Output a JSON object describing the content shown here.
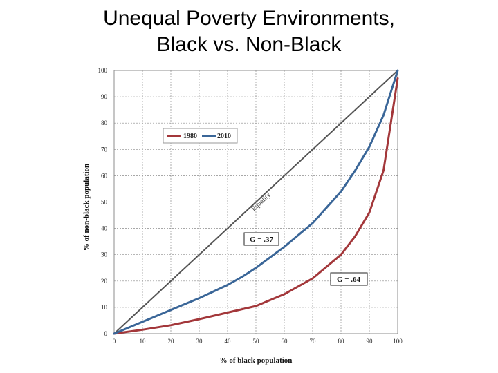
{
  "slide": {
    "title_line1": "Unequal Poverty Environments,",
    "title_line2": "Black vs. Non-Black"
  },
  "chart_data": {
    "type": "line",
    "xlabel": "% of black population",
    "ylabel": "% of non-black population",
    "xlim": [
      0,
      100
    ],
    "ylim": [
      0,
      100
    ],
    "xticks": [
      0,
      10,
      20,
      30,
      40,
      50,
      60,
      70,
      80,
      90,
      100
    ],
    "yticks": [
      0,
      10,
      20,
      30,
      40,
      50,
      60,
      70,
      80,
      90,
      100
    ],
    "grid": true,
    "legend_position": "upper-left",
    "series": [
      {
        "name": "1980",
        "color": "#a3373a",
        "x": [
          0,
          10,
          20,
          30,
          40,
          50,
          60,
          70,
          80,
          85,
          90,
          95,
          100
        ],
        "y": [
          0,
          1.5,
          3.2,
          5.5,
          8,
          10.5,
          15,
          21,
          30,
          37,
          46,
          62,
          97
        ]
      },
      {
        "name": "2010",
        "color": "#3a6698",
        "x": [
          0,
          10,
          20,
          30,
          40,
          45,
          50,
          60,
          70,
          80,
          85,
          90,
          95,
          100
        ],
        "y": [
          0,
          4.5,
          9,
          13.5,
          18.5,
          21.5,
          25,
          33,
          42,
          54,
          62,
          71,
          83,
          100
        ]
      }
    ],
    "equality_line": {
      "label": "Equality",
      "color": "#555555",
      "x": [
        0,
        100
      ],
      "y": [
        0,
        100
      ]
    },
    "annotations": [
      {
        "text": "G = .37",
        "x": 47,
        "y": 35
      },
      {
        "text": "G = .64",
        "x": 84,
        "y": 20
      }
    ]
  }
}
